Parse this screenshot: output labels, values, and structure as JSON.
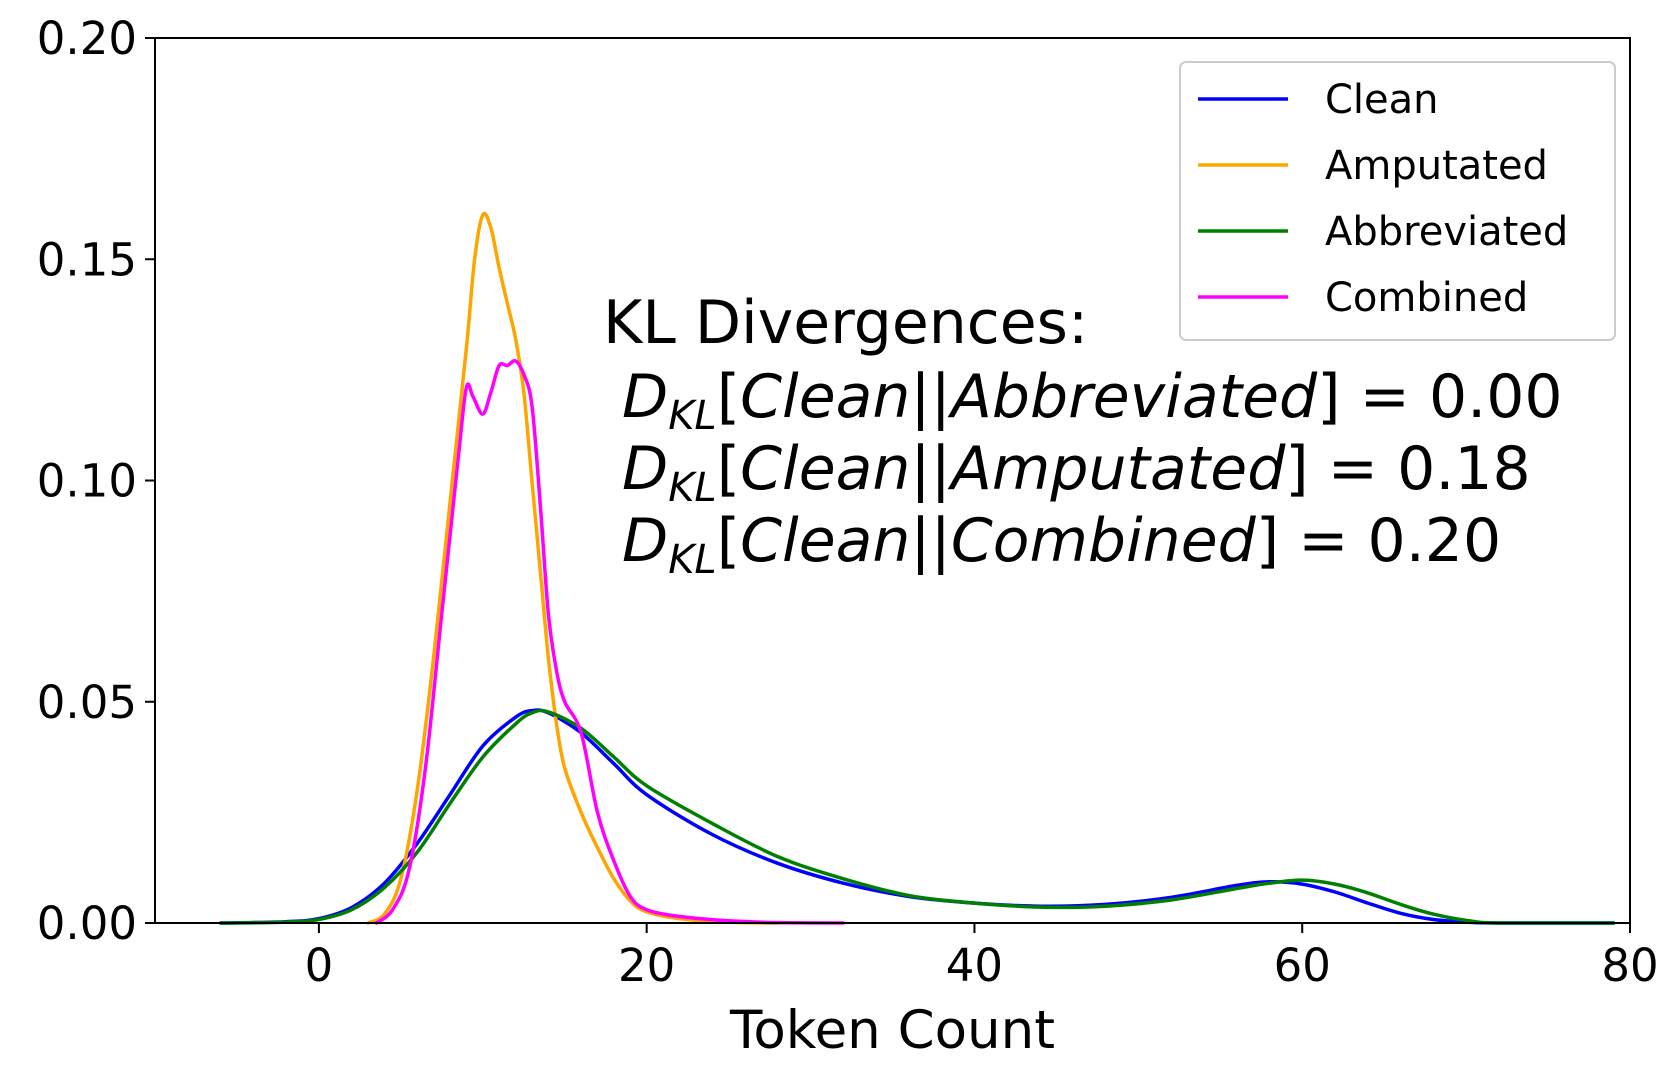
{
  "chart_data": {
    "type": "line",
    "title": "",
    "xlabel": "Token Count",
    "ylabel": "",
    "xlim": [
      -10,
      80
    ],
    "ylim": [
      0,
      0.2
    ],
    "xticks": [
      0,
      20,
      40,
      60,
      80
    ],
    "xtick_labels": [
      "0",
      "20",
      "40",
      "60",
      "80"
    ],
    "yticks": [
      0,
      0.05,
      0.1,
      0.15,
      0.2
    ],
    "ytick_labels": [
      "0.00",
      "0.05",
      "0.10",
      "0.15",
      "0.20"
    ],
    "grid": false,
    "legend_position": "top-right",
    "series": [
      {
        "name": "Clean",
        "color": "#0000ff",
        "points": [
          [
            -6,
            0
          ],
          [
            -2,
            0.0003
          ],
          [
            0,
            0.001
          ],
          [
            2,
            0.0035
          ],
          [
            4,
            0.009
          ],
          [
            6,
            0.018
          ],
          [
            8,
            0.029
          ],
          [
            10,
            0.04
          ],
          [
            12,
            0.0465
          ],
          [
            13,
            0.048
          ],
          [
            14,
            0.0475
          ],
          [
            16,
            0.043
          ],
          [
            18,
            0.036
          ],
          [
            20,
            0.029
          ],
          [
            24,
            0.02
          ],
          [
            28,
            0.0135
          ],
          [
            32,
            0.009
          ],
          [
            36,
            0.006
          ],
          [
            40,
            0.0045
          ],
          [
            44,
            0.0038
          ],
          [
            48,
            0.0042
          ],
          [
            52,
            0.0058
          ],
          [
            56,
            0.0085
          ],
          [
            58,
            0.0093
          ],
          [
            60,
            0.0088
          ],
          [
            62,
            0.007
          ],
          [
            64,
            0.0045
          ],
          [
            66,
            0.0022
          ],
          [
            68,
            0.0008
          ],
          [
            70,
            0.0002
          ],
          [
            72,
            0
          ],
          [
            79,
            0
          ]
        ]
      },
      {
        "name": "Amputated",
        "color": "#ffa500",
        "points": [
          [
            3,
            0
          ],
          [
            4,
            0.002
          ],
          [
            5,
            0.01
          ],
          [
            6,
            0.03
          ],
          [
            7,
            0.06
          ],
          [
            8,
            0.095
          ],
          [
            9,
            0.13
          ],
          [
            9.5,
            0.15
          ],
          [
            10,
            0.16
          ],
          [
            10.5,
            0.157
          ],
          [
            11,
            0.148
          ],
          [
            11.5,
            0.14
          ],
          [
            12,
            0.132
          ],
          [
            12.5,
            0.12
          ],
          [
            13,
            0.1
          ],
          [
            13.5,
            0.08
          ],
          [
            14,
            0.06
          ],
          [
            14.5,
            0.045
          ],
          [
            15,
            0.035
          ],
          [
            16,
            0.025
          ],
          [
            17,
            0.017
          ],
          [
            18,
            0.01
          ],
          [
            19,
            0.005
          ],
          [
            20,
            0.0025
          ],
          [
            22,
            0.001
          ],
          [
            25,
            0.0002
          ],
          [
            28,
            0
          ]
        ]
      },
      {
        "name": "Abbreviated",
        "color": "#008000",
        "points": [
          [
            -6,
            0
          ],
          [
            -2,
            0.0002
          ],
          [
            0,
            0.0008
          ],
          [
            2,
            0.003
          ],
          [
            4,
            0.008
          ],
          [
            6,
            0.016
          ],
          [
            8,
            0.027
          ],
          [
            10,
            0.0375
          ],
          [
            12,
            0.045
          ],
          [
            13,
            0.0475
          ],
          [
            14,
            0.0477
          ],
          [
            16,
            0.044
          ],
          [
            18,
            0.0375
          ],
          [
            20,
            0.031
          ],
          [
            24,
            0.0225
          ],
          [
            28,
            0.015
          ],
          [
            32,
            0.01
          ],
          [
            36,
            0.0062
          ],
          [
            40,
            0.0045
          ],
          [
            44,
            0.0036
          ],
          [
            48,
            0.0038
          ],
          [
            52,
            0.0052
          ],
          [
            56,
            0.0078
          ],
          [
            58,
            0.009
          ],
          [
            60,
            0.0097
          ],
          [
            62,
            0.0088
          ],
          [
            64,
            0.0068
          ],
          [
            66,
            0.0042
          ],
          [
            68,
            0.002
          ],
          [
            70,
            0.0006
          ],
          [
            72,
            0
          ],
          [
            79,
            0
          ]
        ]
      },
      {
        "name": "Combined",
        "color": "#ff00ff",
        "points": [
          [
            3.5,
            0
          ],
          [
            4.5,
            0.003
          ],
          [
            5.5,
            0.012
          ],
          [
            6.5,
            0.035
          ],
          [
            7.5,
            0.07
          ],
          [
            8.5,
            0.105
          ],
          [
            9,
            0.121
          ],
          [
            9.4,
            0.119
          ],
          [
            10,
            0.115
          ],
          [
            10.5,
            0.12
          ],
          [
            11,
            0.126
          ],
          [
            11.5,
            0.126
          ],
          [
            12,
            0.127
          ],
          [
            12.5,
            0.124
          ],
          [
            13,
            0.117
          ],
          [
            13.5,
            0.095
          ],
          [
            14,
            0.07
          ],
          [
            14.5,
            0.057
          ],
          [
            15,
            0.05
          ],
          [
            16,
            0.043
          ],
          [
            17,
            0.025
          ],
          [
            18,
            0.014
          ],
          [
            19,
            0.006
          ],
          [
            20,
            0.003
          ],
          [
            22,
            0.0015
          ],
          [
            25,
            0.0005
          ],
          [
            28,
            0.0001
          ],
          [
            32,
            0
          ]
        ]
      }
    ],
    "annotation": {
      "heading": "KL Divergences:",
      "lines": [
        {
          "d": "D",
          "sub": "KL",
          "open": "[",
          "p": "Clean",
          "sep": "||",
          "q": "Abbreviated",
          "close": "]",
          "eq": " = ",
          "value": "0.00"
        },
        {
          "d": "D",
          "sub": "KL",
          "open": "[",
          "p": "Clean",
          "sep": "||",
          "q": "Amputated",
          "close": "]",
          "eq": " = ",
          "value": "0.18"
        },
        {
          "d": "D",
          "sub": "KL",
          "open": "[",
          "p": "Clean",
          "sep": "||",
          "q": "Combined",
          "close": "]",
          "eq": " = ",
          "value": "0.20"
        }
      ]
    }
  }
}
